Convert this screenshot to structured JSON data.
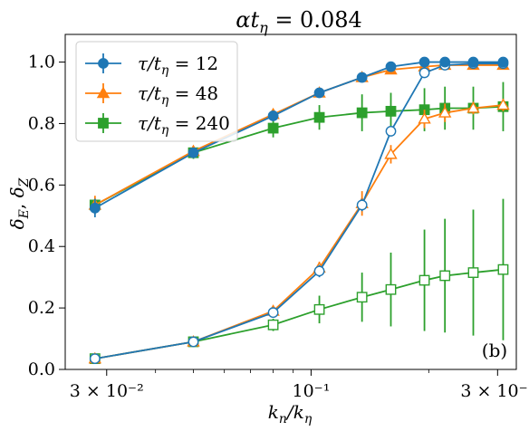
{
  "chart_data": {
    "type": "line",
    "title": "αt_η = 0.084",
    "xlabel": "k_n/k_η",
    "ylabel": "δ_E, δ_Z",
    "xscale": "log",
    "xlim": [
      0.0235,
      0.335
    ],
    "ylim": [
      0.0,
      1.09
    ],
    "x_ticks": [
      {
        "value": 0.03,
        "label": "3 × 10⁻²"
      },
      {
        "value": 0.1,
        "label": "10⁻¹"
      },
      {
        "value": 0.3,
        "label": "3 × 10⁻¹"
      }
    ],
    "y_ticks": [
      {
        "value": 0.0,
        "label": "0.0"
      },
      {
        "value": 0.2,
        "label": "0.2"
      },
      {
        "value": 0.4,
        "label": "0.4"
      },
      {
        "value": 0.6,
        "label": "0.6"
      },
      {
        "value": 0.8,
        "label": "0.8"
      },
      {
        "value": 1.0,
        "label": "1.0"
      }
    ],
    "legend_position": "top-left",
    "panel_label": "(b)",
    "x": [
      0.028,
      0.05,
      0.08,
      0.105,
      0.135,
      0.16,
      0.195,
      0.22,
      0.26,
      0.31
    ],
    "series": [
      {
        "name": "τ/t_η = 12",
        "key": "tau12",
        "color": "#1f77b4",
        "marker": "circle",
        "filled": {
          "y": [
            0.525,
            0.705,
            0.825,
            0.9,
            0.95,
            0.985,
            1.0,
            1.0,
            1.0,
            1.0
          ],
          "err": [
            0.03,
            0.01,
            0.01,
            0.01,
            0.005,
            0.005,
            0.005,
            0.005,
            0.005,
            0.005
          ]
        },
        "open": {
          "y": [
            0.035,
            0.09,
            0.185,
            0.32,
            0.535,
            0.775,
            0.965,
            0.99,
            0.995,
            0.995
          ],
          "err": [
            0.005,
            0.01,
            0.01,
            0.02,
            0.02,
            0.01,
            0.01,
            0.005,
            0.005,
            0.005
          ]
        }
      },
      {
        "name": "τ/t_η = 48",
        "key": "tau48",
        "color": "#ff7f0e",
        "marker": "triangle",
        "filled": {
          "y": [
            0.535,
            0.71,
            0.83,
            0.9,
            0.95,
            0.975,
            0.985,
            0.99,
            0.99,
            0.99
          ],
          "err": [
            0.03,
            0.01,
            0.01,
            0.01,
            0.005,
            0.005,
            0.005,
            0.005,
            0.005,
            0.005
          ]
        },
        "open": {
          "y": [
            0.035,
            0.09,
            0.19,
            0.33,
            0.54,
            0.7,
            0.815,
            0.835,
            0.85,
            0.86
          ],
          "err": [
            0.005,
            0.01,
            0.015,
            0.02,
            0.04,
            0.03,
            0.03,
            0.03,
            0.02,
            0.02
          ]
        }
      },
      {
        "name": "τ/t_η = 240",
        "key": "tau240",
        "color": "#2ca02c",
        "marker": "square",
        "filled": {
          "y": [
            0.535,
            0.705,
            0.785,
            0.82,
            0.835,
            0.84,
            0.845,
            0.85,
            0.85,
            0.855
          ],
          "err": [
            0.02,
            0.02,
            0.03,
            0.04,
            0.06,
            0.06,
            0.07,
            0.07,
            0.07,
            0.08
          ],
          "x_override": [
            0.028,
            0.05,
            0.08,
            0.105,
            0.135,
            0.16,
            0.195,
            0.22,
            0.26,
            0.31
          ]
        },
        "open": {
          "y": [
            0.035,
            0.09,
            0.145,
            0.195,
            0.235,
            0.26,
            0.29,
            0.305,
            0.315,
            0.325
          ],
          "err": [
            0.005,
            0.015,
            0.02,
            0.045,
            0.08,
            0.12,
            0.165,
            0.185,
            0.205,
            0.23
          ]
        }
      }
    ]
  }
}
